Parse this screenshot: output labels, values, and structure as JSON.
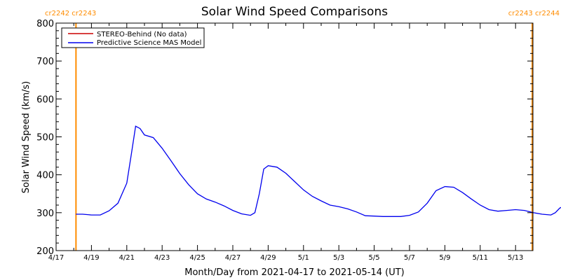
{
  "chart_data": {
    "type": "line",
    "title": "Solar Wind Speed Comparisons",
    "xlabel": "Month/Day from 2021-04-17 to 2021-05-14 (UT)",
    "ylabel": "Solar Wind Speed (km/s)",
    "xlim": [
      "2021-04-17",
      "2021-05-14"
    ],
    "ylim": [
      200,
      800
    ],
    "yticks": [
      200,
      300,
      400,
      500,
      600,
      700,
      800
    ],
    "xticks": [
      {
        "date": "2021-04-17",
        "label": "4/17"
      },
      {
        "date": "2021-04-19",
        "label": "4/19"
      },
      {
        "date": "2021-04-21",
        "label": "4/21"
      },
      {
        "date": "2021-04-23",
        "label": "4/23"
      },
      {
        "date": "2021-04-25",
        "label": "4/25"
      },
      {
        "date": "2021-04-27",
        "label": "4/27"
      },
      {
        "date": "2021-04-29",
        "label": "4/29"
      },
      {
        "date": "2021-05-01",
        "label": "5/1"
      },
      {
        "date": "2021-05-03",
        "label": "5/3"
      },
      {
        "date": "2021-05-05",
        "label": "5/5"
      },
      {
        "date": "2021-05-07",
        "label": "5/7"
      },
      {
        "date": "2021-05-09",
        "label": "5/9"
      },
      {
        "date": "2021-05-11",
        "label": "5/11"
      },
      {
        "date": "2021-05-13",
        "label": "5/13"
      }
    ],
    "grid": false,
    "legend_position": "top-left",
    "carrington_boundaries": [
      {
        "date": "2021-04-18 03:00",
        "labels": [
          "cr2242",
          "cr2243"
        ],
        "color": "#ff8c00"
      },
      {
        "date": "2021-05-14 08:00",
        "labels": [
          "cr2243",
          "cr2244"
        ],
        "color": "#ff8c00"
      }
    ],
    "series": [
      {
        "name": "STEREO-Behind (No data)",
        "color": "#cc0000",
        "points": []
      },
      {
        "name": "Predictive Science MAS Model",
        "color": "#0000ee",
        "points": [
          [
            "2021-04-18 03:00",
            296
          ],
          [
            "2021-04-18 12:00",
            296
          ],
          [
            "2021-04-19 00:00",
            294
          ],
          [
            "2021-04-19 12:00",
            294
          ],
          [
            "2021-04-20 00:00",
            305
          ],
          [
            "2021-04-20 12:00",
            325
          ],
          [
            "2021-04-21 00:00",
            378
          ],
          [
            "2021-04-21 06:00",
            452
          ],
          [
            "2021-04-21 12:00",
            528
          ],
          [
            "2021-04-21 18:00",
            522
          ],
          [
            "2021-04-22 00:00",
            505
          ],
          [
            "2021-04-22 12:00",
            498
          ],
          [
            "2021-04-23 00:00",
            470
          ],
          [
            "2021-04-23 12:00",
            437
          ],
          [
            "2021-04-24 00:00",
            403
          ],
          [
            "2021-04-24 12:00",
            374
          ],
          [
            "2021-04-25 00:00",
            350
          ],
          [
            "2021-04-25 12:00",
            336
          ],
          [
            "2021-04-26 00:00",
            328
          ],
          [
            "2021-04-26 12:00",
            318
          ],
          [
            "2021-04-27 00:00",
            306
          ],
          [
            "2021-04-27 12:00",
            297
          ],
          [
            "2021-04-28 00:00",
            293
          ],
          [
            "2021-04-28 06:00",
            300
          ],
          [
            "2021-04-28 12:00",
            350
          ],
          [
            "2021-04-28 18:00",
            415
          ],
          [
            "2021-04-29 00:00",
            424
          ],
          [
            "2021-04-29 12:00",
            420
          ],
          [
            "2021-04-30 00:00",
            404
          ],
          [
            "2021-04-30 12:00",
            382
          ],
          [
            "2021-05-01 00:00",
            360
          ],
          [
            "2021-05-01 12:00",
            343
          ],
          [
            "2021-05-02 00:00",
            331
          ],
          [
            "2021-05-02 12:00",
            320
          ],
          [
            "2021-05-03 00:00",
            316
          ],
          [
            "2021-05-03 12:00",
            310
          ],
          [
            "2021-05-04 00:00",
            302
          ],
          [
            "2021-05-04 12:00",
            292
          ],
          [
            "2021-05-05 00:00",
            291
          ],
          [
            "2021-05-05 12:00",
            290
          ],
          [
            "2021-05-06 00:00",
            290
          ],
          [
            "2021-05-06 12:00",
            290
          ],
          [
            "2021-05-07 00:00",
            293
          ],
          [
            "2021-05-07 12:00",
            302
          ],
          [
            "2021-05-08 00:00",
            325
          ],
          [
            "2021-05-08 12:00",
            358
          ],
          [
            "2021-05-09 00:00",
            369
          ],
          [
            "2021-05-09 12:00",
            367
          ],
          [
            "2021-05-10 00:00",
            353
          ],
          [
            "2021-05-10 12:00",
            336
          ],
          [
            "2021-05-11 00:00",
            320
          ],
          [
            "2021-05-11 12:00",
            308
          ],
          [
            "2021-05-12 00:00",
            304
          ],
          [
            "2021-05-12 12:00",
            306
          ],
          [
            "2021-05-13 00:00",
            308
          ],
          [
            "2021-05-13 12:00",
            306
          ],
          [
            "2021-05-14 00:00",
            300
          ],
          [
            "2021-05-14 12:00",
            296
          ],
          [
            "2021-05-15 00:00",
            294
          ],
          [
            "2021-05-15 06:00",
            300
          ],
          [
            "2021-05-15 12:00",
            312
          ],
          [
            "2021-05-15 18:00",
            318
          ]
        ]
      }
    ]
  }
}
